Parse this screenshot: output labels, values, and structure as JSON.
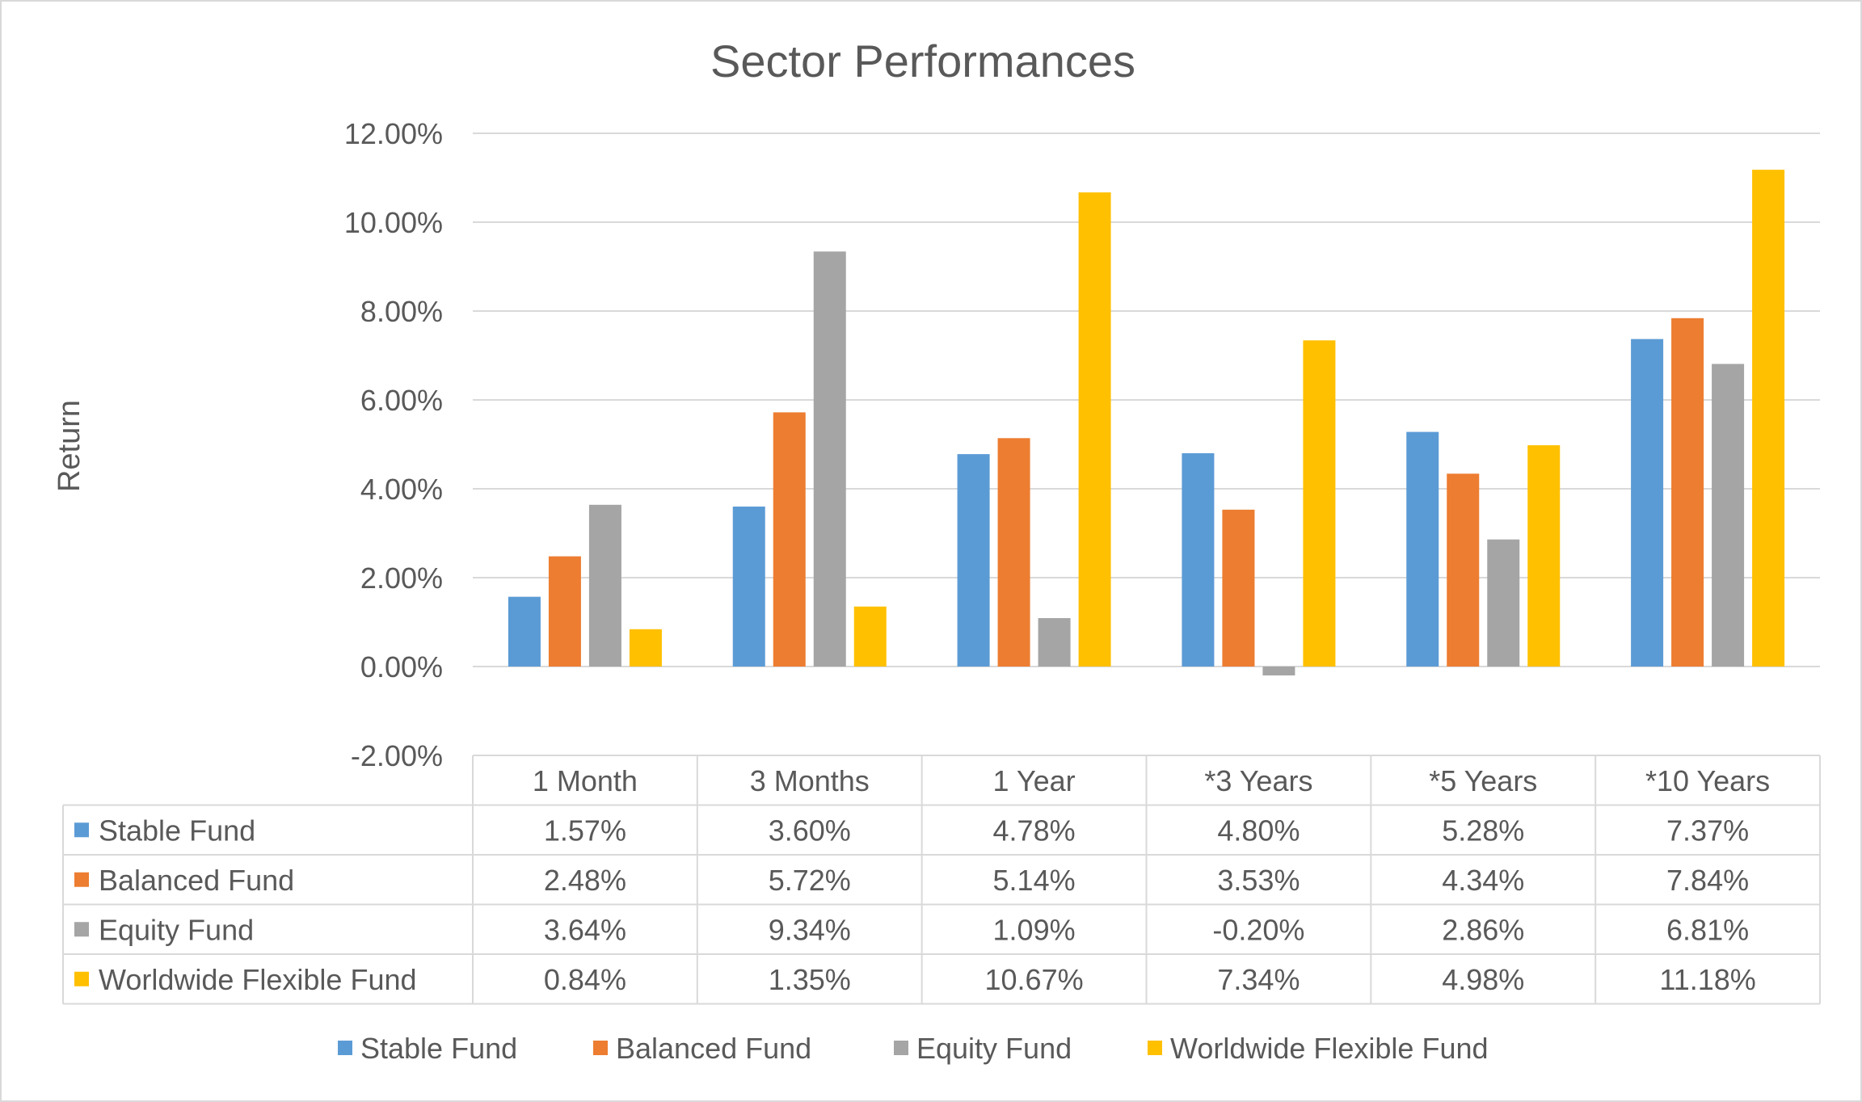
{
  "chart_data": {
    "type": "bar",
    "title": "Sector Performances",
    "ylabel": "Return",
    "xlabel": "",
    "categories": [
      "1 Month",
      "3 Months",
      "1 Year",
      "*3 Years",
      "*5 Years",
      "*10 Years"
    ],
    "ylim": [
      -0.02,
      0.12
    ],
    "yticks": [
      -0.02,
      0,
      0.02,
      0.04,
      0.06,
      0.08,
      0.1,
      0.12
    ],
    "ytick_labels": [
      "-2.00%",
      "0.00%",
      "2.00%",
      "4.00%",
      "6.00%",
      "8.00%",
      "10.00%",
      "12.00%"
    ],
    "grid": true,
    "legend_position": "bottom",
    "data_table": true,
    "series": [
      {
        "name": "Stable Fund",
        "color": "#5B9BD5",
        "values": [
          0.0157,
          0.036,
          0.0478,
          0.048,
          0.0528,
          0.0737
        ],
        "labels": [
          "1.57%",
          "3.60%",
          "4.78%",
          "4.80%",
          "5.28%",
          "7.37%"
        ]
      },
      {
        "name": "Balanced Fund",
        "color": "#ED7D31",
        "values": [
          0.0248,
          0.0572,
          0.0514,
          0.0353,
          0.0434,
          0.0784
        ],
        "labels": [
          "2.48%",
          "5.72%",
          "5.14%",
          "3.53%",
          "4.34%",
          "7.84%"
        ]
      },
      {
        "name": "Equity Fund",
        "color": "#A5A5A5",
        "values": [
          0.0364,
          0.0934,
          0.0109,
          -0.002,
          0.0286,
          0.0681
        ],
        "labels": [
          "3.64%",
          "9.34%",
          "1.09%",
          "-0.20%",
          "2.86%",
          "6.81%"
        ]
      },
      {
        "name": "Worldwide Flexible Fund",
        "color": "#FFC000",
        "values": [
          0.0084,
          0.0135,
          0.1067,
          0.0734,
          0.0498,
          0.1118
        ],
        "labels": [
          "0.84%",
          "1.35%",
          "10.67%",
          "7.34%",
          "4.98%",
          "11.18%"
        ]
      }
    ]
  }
}
